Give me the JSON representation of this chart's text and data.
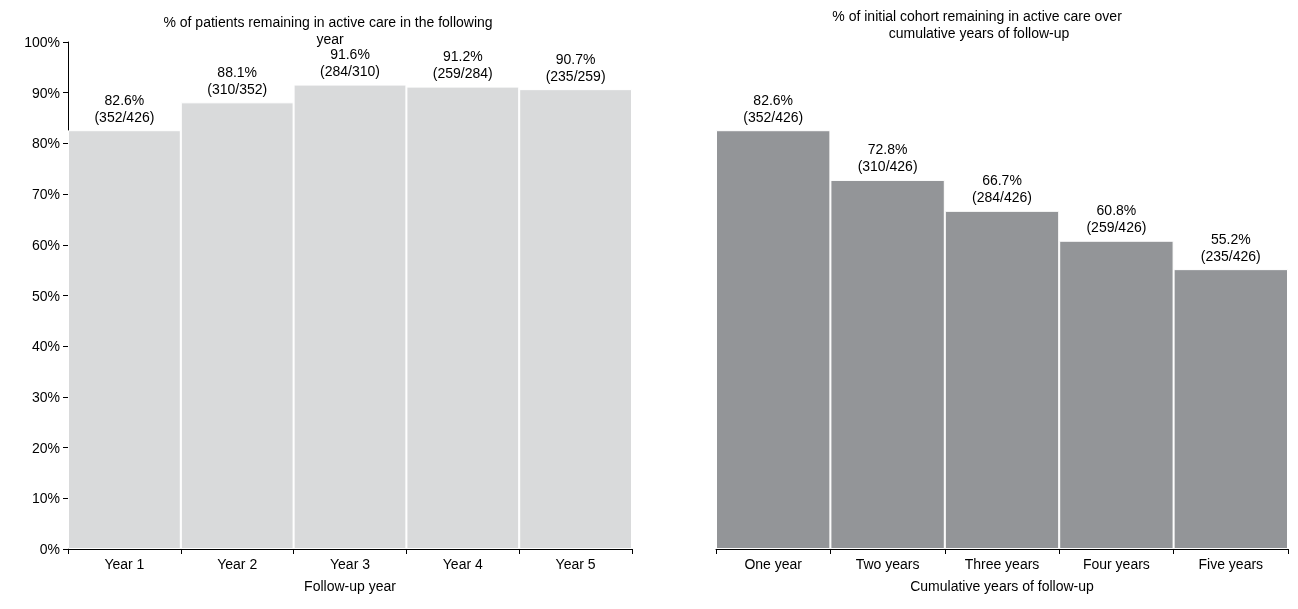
{
  "chart_data": [
    {
      "type": "bar",
      "title": "% of patients remaining in active care in the following year",
      "xlabel": "Follow-up year",
      "categories": [
        "Year 1",
        "Year 2",
        "Year 3",
        "Year 4",
        "Year 5"
      ],
      "series": [
        {
          "color": "#d9dadb",
          "values": [
            82.6,
            88.1,
            91.6,
            91.2,
            90.7
          ],
          "value_labels": [
            "82.6% (352/426)",
            "88.1% (310/352)",
            "91.6% (284/310)",
            "91.2% (259/284)",
            "90.7% (235/259)"
          ]
        }
      ],
      "ylim": [
        0,
        100
      ],
      "yticks": [
        {
          "value": 0,
          "label": "0%"
        },
        {
          "value": 10,
          "label": "10%"
        },
        {
          "value": 20,
          "label": "20%"
        },
        {
          "value": 30,
          "label": "30%"
        },
        {
          "value": 40,
          "label": "40%"
        },
        {
          "value": 50,
          "label": "50%"
        },
        {
          "value": 60,
          "label": "60%"
        },
        {
          "value": 70,
          "label": "70%"
        },
        {
          "value": 80,
          "label": "80%"
        },
        {
          "value": 90,
          "label": "90%"
        },
        {
          "value": 100,
          "label": "100%"
        }
      ]
    },
    {
      "type": "bar",
      "title": "% of initial cohort remaining in active care over cumulative years of follow-up",
      "xlabel": "Cumulative years of follow-up",
      "categories": [
        "One year",
        "Two years",
        "Three years",
        "Four years",
        "Five years"
      ],
      "series": [
        {
          "color": "#939598",
          "values": [
            82.6,
            72.8,
            66.7,
            60.8,
            55.2
          ],
          "value_labels": [
            "82.6% (352/426)",
            "72.8% (310/426)",
            "66.7% (284/426)",
            "60.8% (259/426)",
            "55.2% (235/426)"
          ]
        }
      ],
      "ylim": [
        0,
        100
      ],
      "tick_labels": "x"
    }
  ]
}
